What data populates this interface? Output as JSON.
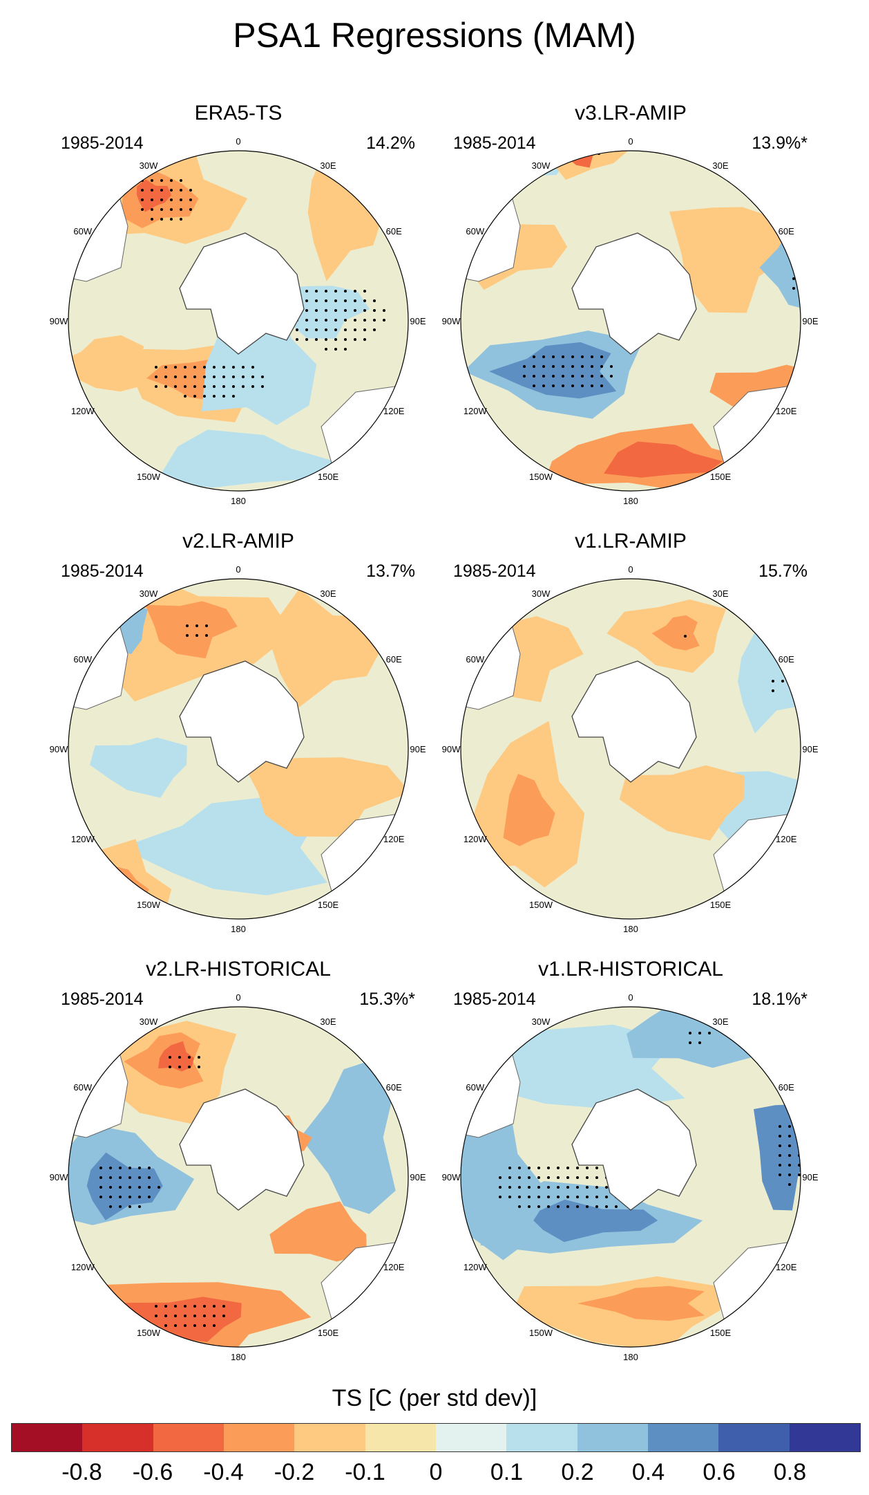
{
  "title": "PSA1 Regressions (MAM)",
  "longitude_labels": [
    "0",
    "30E",
    "60E",
    "90E",
    "120E",
    "150E",
    "180",
    "150W",
    "120W",
    "90W",
    "60W",
    "30W"
  ],
  "panels": [
    {
      "name": "ERA5-TS",
      "years": "1985-2014",
      "pct": "14.2%"
    },
    {
      "name": "v3.LR-AMIP",
      "years": "1985-2014",
      "pct": "13.9%*"
    },
    {
      "name": "v2.LR-AMIP",
      "years": "1985-2014",
      "pct": "13.7%"
    },
    {
      "name": "v1.LR-AMIP",
      "years": "1985-2014",
      "pct": "15.7%"
    },
    {
      "name": "v2.LR-HISTORICAL",
      "years": "1985-2014",
      "pct": "15.3%*"
    },
    {
      "name": "v1.LR-HISTORICAL",
      "years": "1985-2014",
      "pct": "18.1%*"
    }
  ],
  "colorbar": {
    "title": "TS [C (per std dev)]",
    "colors": [
      "#a50f26",
      "#d7302a",
      "#f26841",
      "#fb9d59",
      "#fec981",
      "#f7e6aa",
      "#e3f2ef",
      "#b7e0ec",
      "#90c2de",
      "#5e8fc2",
      "#3f5fac",
      "#323896"
    ],
    "labels": [
      "-0.8",
      "-0.6",
      "-0.4",
      "-0.2",
      "-0.1",
      "0",
      "0.1",
      "0.2",
      "0.4",
      "0.6",
      "0.8"
    ]
  }
}
